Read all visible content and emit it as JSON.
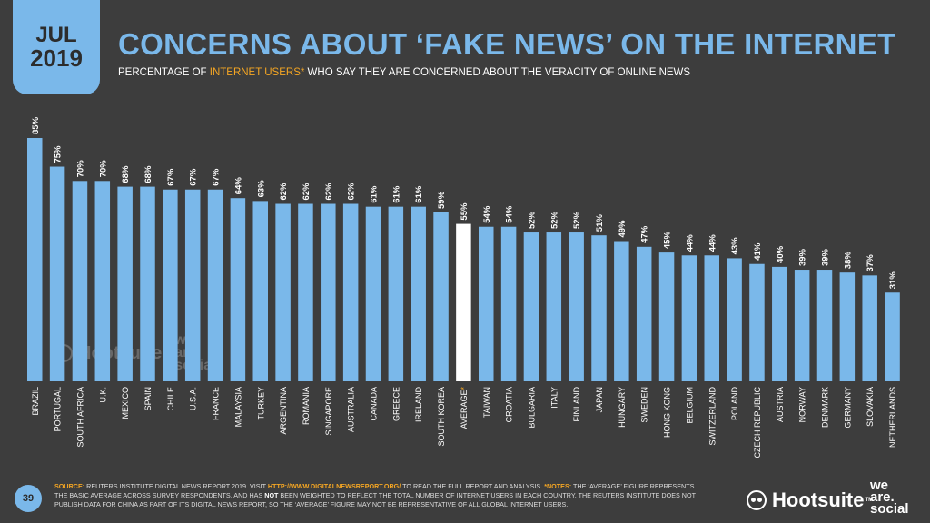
{
  "badge": {
    "month": "JUL",
    "year": "2019"
  },
  "title": "CONCERNS ABOUT ‘FAKE NEWS’ ON THE INTERNET",
  "subtitle": {
    "pre": "PERCENTAGE OF ",
    "highlight": "INTERNET USERS*",
    "post": " WHO SAY THEY ARE CONCERNED ABOUT THE VERACITY OF ONLINE NEWS"
  },
  "colors": {
    "bar": "#7ab8ea",
    "highlight_bar": "#ffffff",
    "accent": "#f5a623",
    "background": "#3d3d3d"
  },
  "chart_data": {
    "type": "bar",
    "title": "CONCERNS ABOUT ‘FAKE NEWS’ ON THE INTERNET",
    "ylabel": "",
    "xlabel": "",
    "ylim": [
      0,
      85
    ],
    "grid": false,
    "value_suffix": "%",
    "highlight_category": "AVERAGE*",
    "categories": [
      "BRAZIL",
      "PORTUGAL",
      "SOUTH AFRICA",
      "U.K.",
      "MEXICO",
      "SPAIN",
      "CHILE",
      "U.S.A.",
      "FRANCE",
      "MALAYSIA",
      "TURKEY",
      "ARGENTINA",
      "ROMANIA",
      "SINGAPORE",
      "AUSTRALIA",
      "CANADA",
      "GREECE",
      "IRELAND",
      "SOUTH KOREA",
      "AVERAGE*",
      "TAIWAN",
      "CROATIA",
      "BULGARIA",
      "ITALY",
      "FINLAND",
      "JAPAN",
      "HUNGARY",
      "SWEDEN",
      "HONG KONG",
      "BELGIUM",
      "SWITZERLAND",
      "POLAND",
      "CZECH REPUBLIC",
      "AUSTRIA",
      "NORWAY",
      "DENMARK",
      "GERMANY",
      "SLOVAKIA",
      "NETHERLANDS"
    ],
    "values": [
      85,
      75,
      70,
      70,
      68,
      68,
      67,
      67,
      67,
      64,
      63,
      62,
      62,
      62,
      62,
      61,
      61,
      61,
      59,
      55,
      54,
      54,
      52,
      52,
      52,
      51,
      49,
      47,
      45,
      44,
      44,
      43,
      41,
      40,
      39,
      39,
      38,
      37,
      31
    ]
  },
  "footer": {
    "page_number": "39",
    "source_label": "SOURCE:",
    "source_text": " REUTERS INSTITUTE DIGITAL NEWS REPORT 2019. VISIT ",
    "source_url": "HTTP://WWW.DIGITALNEWSREPORT.ORG/",
    "source_tail": " TO READ THE FULL REPORT AND ANALYSIS. ",
    "notes_label": "*NOTES:",
    "notes_text": " THE ‘AVERAGE’ FIGURE REPRESENTS THE BASIC AVERAGE ACROSS SURVEY RESPONDENTS, AND HAS ",
    "notes_not": "NOT",
    "notes_tail": " BEEN WEIGHTED TO REFLECT THE TOTAL NUMBER OF INTERNET USERS IN EACH COUNTRY. THE REUTERS INSTITUTE DOES NOT PUBLISH DATA FOR CHINA AS PART OF ITS DIGITAL NEWS REPORT, SO THE ‘AVERAGE’ FIGURE MAY NOT BE REPRESENTATIVE OF ALL GLOBAL INTERNET USERS."
  },
  "logos": {
    "hootsuite": "Hootsuite",
    "tm": "TM",
    "we": "we",
    "are": "are.",
    "social": "social"
  },
  "watermark": {
    "hootsuite": "Hootsuite",
    "we": "we",
    "are": "are",
    "social": "social"
  }
}
